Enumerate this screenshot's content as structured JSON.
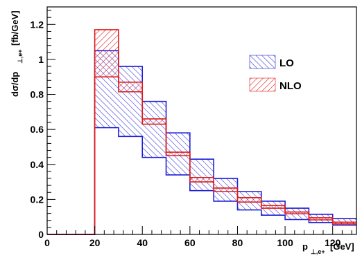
{
  "chart_data": {
    "type": "histogram-band",
    "xlim": [
      0,
      130
    ],
    "ylim": [
      0,
      1.3
    ],
    "xticks": [
      "0",
      "20",
      "40",
      "60",
      "80",
      "100",
      "120"
    ],
    "yticks": [
      "0",
      "0.2",
      "0.4",
      "0.6",
      "0.8",
      "1",
      "1.2"
    ],
    "xlabel": {
      "main": "p",
      "sub": "⊥,e+",
      "unit": "[GeV]"
    },
    "ylabel": {
      "main": "dσ/dp",
      "sub": "⊥,e+",
      "unit": "[fb/GeV]"
    },
    "legend_position": "top-right",
    "grid": false,
    "bin_edges": [
      0,
      10,
      20,
      30,
      40,
      50,
      60,
      70,
      80,
      90,
      100,
      110,
      120,
      130
    ],
    "series": [
      {
        "name": "LO",
        "color": "#1f1fd6",
        "hatch": "diagonal-down",
        "lower": [
          0,
          0,
          0.61,
          0.56,
          0.44,
          0.34,
          0.25,
          0.19,
          0.14,
          0.11,
          0.085,
          0.068,
          0.053
        ],
        "upper": [
          0,
          0,
          1.05,
          0.96,
          0.76,
          0.58,
          0.43,
          0.32,
          0.245,
          0.19,
          0.15,
          0.115,
          0.09
        ]
      },
      {
        "name": "NLO",
        "color": "#e01a1a",
        "hatch": "diagonal-up",
        "lower": [
          0,
          0,
          0.9,
          0.815,
          0.63,
          0.45,
          0.3,
          0.245,
          0.185,
          0.15,
          0.118,
          0.083,
          0.06
        ],
        "upper": [
          0,
          0,
          1.17,
          0.87,
          0.66,
          0.47,
          0.325,
          0.265,
          0.21,
          0.165,
          0.128,
          0.095,
          0.07
        ]
      }
    ]
  }
}
